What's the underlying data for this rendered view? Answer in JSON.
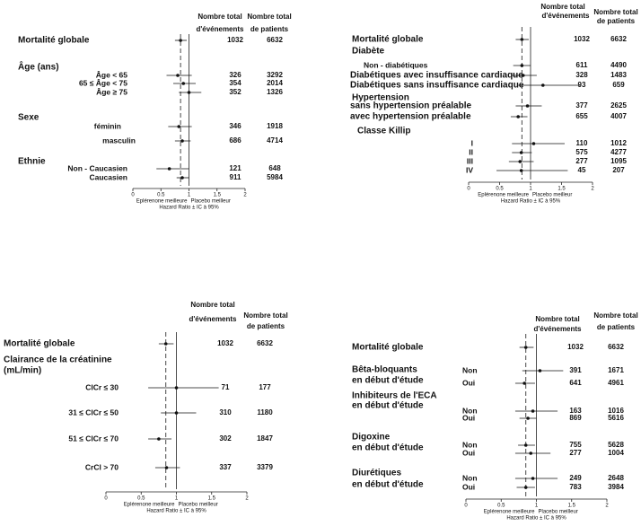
{
  "chart_data": [
    {
      "type": "forest",
      "events_header": [
        "Nombre total",
        "d'événements"
      ],
      "patients_header": [
        "Nombre total",
        "de patients"
      ],
      "categories": [
        "Mortalité globale",
        "Âge (ans)",
        "Âge < 65",
        "65 ≤ Âge < 75",
        "Âge ≥ 75",
        "Sexe",
        "féminin",
        "masculin",
        "Ethnie",
        "Non - Caucasien",
        "Caucasien"
      ],
      "values": [
        0.85,
        null,
        0.8,
        0.9,
        1.0,
        null,
        0.82,
        0.88,
        null,
        0.65,
        0.88
      ],
      "lower": [
        0.75,
        null,
        0.6,
        0.72,
        0.82,
        null,
        0.63,
        0.75,
        null,
        0.42,
        0.78
      ],
      "upper": [
        0.96,
        null,
        1.05,
        1.12,
        1.22,
        null,
        1.05,
        1.03,
        null,
        1.0,
        1.0
      ],
      "events": [
        1032,
        null,
        326,
        354,
        352,
        null,
        346,
        686,
        null,
        121,
        911
      ],
      "patients": [
        6632,
        null,
        3292,
        2014,
        1326,
        null,
        1918,
        4714,
        null,
        648,
        5984
      ],
      "xlim": [
        0,
        2
      ],
      "xticks": [
        0,
        0.5,
        1,
        1.5,
        2
      ],
      "reference_line": 1,
      "x_label_left": "Eplérenone meilleure",
      "x_label_right": "Placebo meilleur",
      "x_label": "Hazard Ratio ± IC à 95%"
    },
    {
      "type": "forest",
      "events_header": [
        "Nombre total",
        "d'événements"
      ],
      "patients_header": [
        "Nombre total",
        "de patients"
      ],
      "categories": [
        "Mortalité globale",
        "Diabète",
        "Non - diabétiques",
        "Diabétiques avec insuffisance cardiaque",
        "Diabétiques sans insuffisance cardiaque",
        "Hypertension",
        "sans hypertension préalable",
        "avec hypertension préalable",
        "Classe Killip",
        "I",
        "II",
        "III",
        "IV"
      ],
      "values": [
        0.86,
        null,
        0.86,
        0.88,
        1.2,
        null,
        0.95,
        0.8,
        null,
        1.05,
        0.85,
        0.83,
        0.85
      ],
      "lower": [
        0.76,
        null,
        0.72,
        0.7,
        0.8,
        null,
        0.76,
        0.68,
        null,
        0.7,
        0.7,
        0.65,
        0.45
      ],
      "upper": [
        0.97,
        null,
        1.0,
        1.1,
        1.8,
        null,
        1.18,
        0.95,
        null,
        1.55,
        1.02,
        1.05,
        1.6
      ],
      "events": [
        1032,
        null,
        611,
        328,
        93,
        null,
        377,
        655,
        null,
        110,
        575,
        277,
        45
      ],
      "patients": [
        6632,
        null,
        4490,
        1483,
        659,
        null,
        2625,
        4007,
        null,
        1012,
        4277,
        1095,
        207
      ],
      "xlim": [
        0,
        2
      ],
      "xticks": [
        0,
        0.5,
        1,
        1.5,
        2
      ],
      "reference_line": 1,
      "x_label_left": "Eplérenone meilleure",
      "x_label_right": "Placebo meilleur",
      "x_label": "Hazard Ratio ± IC à 95%"
    },
    {
      "type": "forest",
      "events_header": [
        "Nombre total",
        "d'événements"
      ],
      "patients_header": [
        "Nombre total",
        "de patients"
      ],
      "categories": [
        "Mortalité globale",
        "Clairance de la créatinine",
        "(mL/min)",
        "ClCr ≤ 30",
        "31 ≤ ClCr ≤ 50",
        "51 ≤ ClCr ≤ 70",
        "CrCl > 70"
      ],
      "values": [
        0.85,
        null,
        null,
        1.0,
        1.0,
        0.75,
        0.86
      ],
      "lower": [
        0.75,
        null,
        null,
        0.6,
        0.78,
        0.6,
        0.7
      ],
      "upper": [
        0.96,
        null,
        null,
        1.6,
        1.28,
        0.93,
        1.05
      ],
      "events": [
        1032,
        null,
        null,
        71,
        310,
        302,
        337
      ],
      "patients": [
        6632,
        null,
        null,
        177,
        1180,
        1847,
        3379
      ],
      "xlim": [
        0,
        2
      ],
      "xticks": [
        0,
        0.5,
        1,
        1.5,
        2
      ],
      "reference_line": 1,
      "x_label_left": "Eplérenone meilleure",
      "x_label_right": "Placebo meilleur",
      "x_label": "Hazard Ratio ± IC à 95%"
    },
    {
      "type": "forest",
      "events_header": [
        "Nombre total",
        "d'événements"
      ],
      "patients_header": [
        "Nombre total",
        "de patients"
      ],
      "categories": [
        "Mortalité globale",
        "Non",
        "Oui",
        "Non",
        "Oui",
        "Non",
        "Oui",
        "Non",
        "Oui"
      ],
      "groups": [
        [
          "Bêta-bloquants",
          "en début d'étude"
        ],
        [
          "Inhibiteurs de l'ECA",
          "en début d'étude"
        ],
        [
          "Digoxine",
          "en début d'étude"
        ],
        [
          "Diurétiques",
          "en début d'étude"
        ]
      ],
      "values": [
        0.85,
        1.05,
        0.83,
        0.95,
        0.88,
        0.85,
        0.92,
        0.95,
        0.85
      ],
      "lower": [
        0.76,
        0.8,
        0.7,
        0.7,
        0.76,
        0.74,
        0.7,
        0.7,
        0.72
      ],
      "upper": [
        0.96,
        1.38,
        0.98,
        1.3,
        1.0,
        0.98,
        1.2,
        1.3,
        0.98
      ],
      "events": [
        1032,
        391,
        641,
        163,
        869,
        755,
        277,
        249,
        783
      ],
      "patients": [
        6632,
        1671,
        4961,
        1016,
        5616,
        5628,
        1004,
        2648,
        3984
      ],
      "xlim": [
        0,
        2
      ],
      "xticks": [
        0,
        0.5,
        1,
        1.5,
        2
      ],
      "reference_line": 1,
      "x_label_left": "Eplérenone meilleure",
      "x_label_right": "Placebo meilleur",
      "x_label": "Hazard Ratio ± IC à 95%"
    }
  ]
}
